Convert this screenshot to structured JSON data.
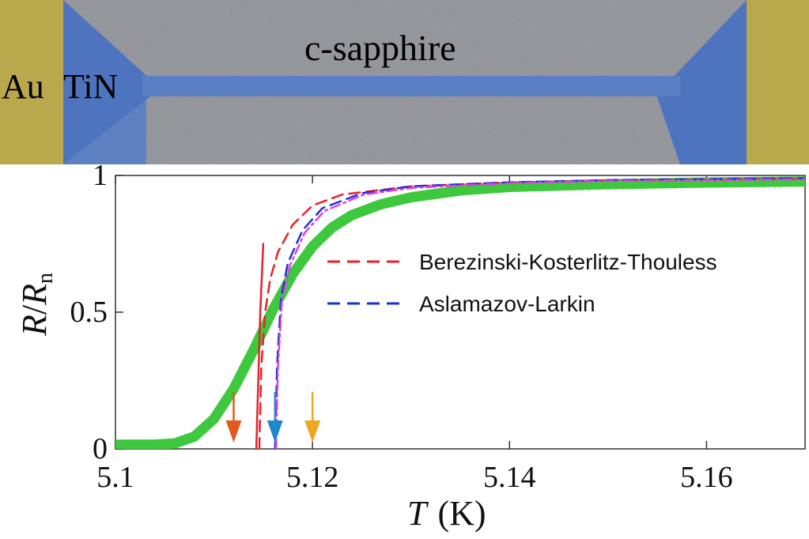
{
  "micrograph": {
    "labels": [
      "c-sapphire",
      "Au",
      "TiN"
    ]
  },
  "chart_data": {
    "type": "line",
    "xlabel_symbol": "T",
    "xlabel_unit": "(K)",
    "ylabel_symbol": "R",
    "ylabel_sub": "n",
    "xlim": [
      5.1,
      5.17
    ],
    "ylim": [
      0,
      1
    ],
    "xticks": [
      5.1,
      5.12,
      5.14,
      5.16
    ],
    "xtick_labels": [
      "5.1",
      "5.12",
      "5.14",
      "5.16"
    ],
    "yticks": [
      0,
      0.5,
      1
    ],
    "ytick_labels": [
      "0",
      "0.5",
      "1"
    ],
    "legend_position": "center-right",
    "series": [
      {
        "color": "#3ec83e",
        "style": "solid-thick",
        "points": [
          [
            5.1,
            0.015
          ],
          [
            5.104,
            0.016
          ],
          [
            5.106,
            0.02
          ],
          [
            5.108,
            0.045
          ],
          [
            5.11,
            0.11
          ],
          [
            5.112,
            0.22
          ],
          [
            5.114,
            0.36
          ],
          [
            5.116,
            0.51
          ],
          [
            5.118,
            0.64
          ],
          [
            5.12,
            0.74
          ],
          [
            5.122,
            0.81
          ],
          [
            5.124,
            0.855
          ],
          [
            5.127,
            0.895
          ],
          [
            5.13,
            0.92
          ],
          [
            5.135,
            0.945
          ],
          [
            5.14,
            0.958
          ],
          [
            5.15,
            0.968
          ],
          [
            5.16,
            0.974
          ],
          [
            5.17,
            0.978
          ]
        ]
      },
      {
        "name": "Berezinski-Kosterlitz-Thouless",
        "color": "#e8202a",
        "style": "dashed",
        "points": [
          [
            5.1146,
            0.0
          ],
          [
            5.1148,
            0.3
          ],
          [
            5.1152,
            0.5
          ],
          [
            5.1157,
            0.62
          ],
          [
            5.1165,
            0.72
          ],
          [
            5.118,
            0.82
          ],
          [
            5.12,
            0.89
          ],
          [
            5.123,
            0.93
          ],
          [
            5.13,
            0.96
          ],
          [
            5.14,
            0.975
          ],
          [
            5.15,
            0.982
          ],
          [
            5.17,
            0.988
          ]
        ]
      },
      {
        "name": "Aslamazov-Larkin",
        "color": "#1f2fd6",
        "style": "dashed",
        "points": [
          [
            5.1162,
            0.0
          ],
          [
            5.1164,
            0.3
          ],
          [
            5.1168,
            0.55
          ],
          [
            5.1175,
            0.68
          ],
          [
            5.119,
            0.8
          ],
          [
            5.121,
            0.88
          ],
          [
            5.125,
            0.935
          ],
          [
            5.13,
            0.96
          ],
          [
            5.14,
            0.975
          ],
          [
            5.15,
            0.983
          ],
          [
            5.17,
            0.99
          ]
        ]
      },
      {
        "color": "#e040e0",
        "style": "dashdot",
        "points": [
          [
            5.1163,
            0.0
          ],
          [
            5.1165,
            0.3
          ],
          [
            5.1169,
            0.54
          ],
          [
            5.1177,
            0.67
          ],
          [
            5.1192,
            0.79
          ],
          [
            5.1212,
            0.87
          ],
          [
            5.1252,
            0.93
          ],
          [
            5.1302,
            0.955
          ],
          [
            5.14,
            0.972
          ],
          [
            5.15,
            0.98
          ],
          [
            5.17,
            0.986
          ]
        ]
      },
      {
        "color": "#e8202a",
        "style": "solid",
        "points": [
          [
            5.1143,
            0.0
          ],
          [
            5.1145,
            0.25
          ],
          [
            5.1147,
            0.5
          ],
          [
            5.115,
            0.75
          ]
        ]
      }
    ],
    "markers": [
      {
        "x": 5.112,
        "color": "#e05a1e"
      },
      {
        "x": 5.1162,
        "color": "#1e88c8"
      },
      {
        "x": 5.12,
        "color": "#f0a820"
      }
    ]
  }
}
